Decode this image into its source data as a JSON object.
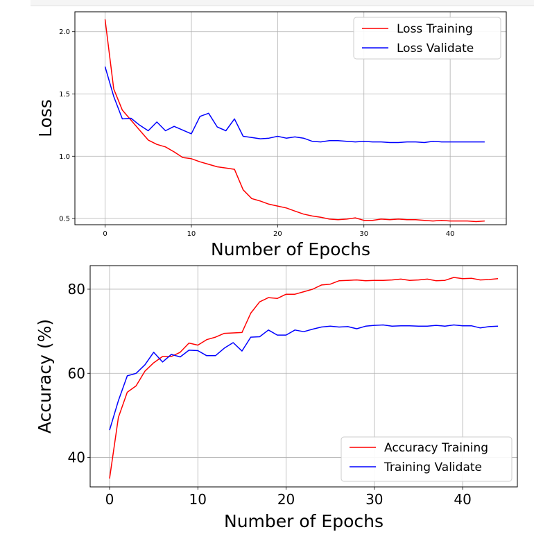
{
  "chart_data": [
    {
      "type": "line",
      "xlabel": "Number of Epochs",
      "ylabel": "Loss",
      "xlim": [
        -3.5,
        46.5
      ],
      "ylim": [
        0.45,
        2.16
      ],
      "xticks": [
        0,
        10,
        20,
        30,
        40
      ],
      "yticks": [
        0.5,
        1.0,
        1.5,
        2.0
      ],
      "ytick_labels": [
        "0.5",
        "1.0",
        "1.5",
        "2.0"
      ],
      "grid": true,
      "legend_position": "top-right",
      "series": [
        {
          "name": "Loss Training",
          "color": "#ff0000",
          "x": [
            0,
            1,
            2,
            3,
            4,
            5,
            6,
            7,
            8,
            9,
            10,
            11,
            12,
            13,
            14,
            15,
            16,
            17,
            18,
            19,
            20,
            21,
            22,
            23,
            24,
            25,
            26,
            27,
            28,
            29,
            30,
            31,
            32,
            33,
            34,
            35,
            36,
            37,
            38,
            39,
            40,
            41,
            42,
            43,
            44
          ],
          "values": [
            2.1,
            1.54,
            1.37,
            1.29,
            1.21,
            1.13,
            1.095,
            1.075,
            1.035,
            0.99,
            0.98,
            0.955,
            0.935,
            0.915,
            0.905,
            0.895,
            0.73,
            0.66,
            0.64,
            0.615,
            0.6,
            0.585,
            0.56,
            0.535,
            0.52,
            0.51,
            0.495,
            0.49,
            0.495,
            0.505,
            0.485,
            0.485,
            0.495,
            0.49,
            0.495,
            0.49,
            0.49,
            0.485,
            0.48,
            0.485,
            0.48,
            0.48,
            0.48,
            0.475,
            0.48
          ]
        },
        {
          "name": "Loss Validate",
          "color": "#0000ff",
          "x": [
            0,
            1,
            2,
            3,
            4,
            5,
            6,
            7,
            8,
            9,
            10,
            11,
            12,
            13,
            14,
            15,
            16,
            17,
            18,
            19,
            20,
            21,
            22,
            23,
            24,
            25,
            26,
            27,
            28,
            29,
            30,
            31,
            32,
            33,
            34,
            35,
            36,
            37,
            38,
            39,
            40,
            41,
            42,
            43,
            44
          ],
          "values": [
            1.72,
            1.48,
            1.3,
            1.305,
            1.25,
            1.205,
            1.275,
            1.205,
            1.24,
            1.21,
            1.18,
            1.32,
            1.345,
            1.235,
            1.205,
            1.3,
            1.16,
            1.15,
            1.14,
            1.145,
            1.16,
            1.145,
            1.155,
            1.145,
            1.12,
            1.115,
            1.125,
            1.125,
            1.12,
            1.115,
            1.12,
            1.115,
            1.115,
            1.11,
            1.11,
            1.115,
            1.115,
            1.11,
            1.12,
            1.115,
            1.115,
            1.115,
            1.115,
            1.115,
            1.115
          ]
        }
      ]
    },
    {
      "type": "line",
      "xlabel": "Number of Epochs",
      "ylabel": "Accuracy (%)",
      "xlim": [
        -2.2,
        46.2
      ],
      "ylim": [
        33.0,
        85.6
      ],
      "xticks": [
        0,
        10,
        20,
        30,
        40
      ],
      "yticks": [
        40,
        60,
        80
      ],
      "ytick_labels": [
        "40",
        "60",
        "80"
      ],
      "grid": true,
      "legend_position": "bottom-right",
      "series": [
        {
          "name": "Accuracy Training",
          "color": "#ff0000",
          "x": [
            0,
            1,
            2,
            3,
            4,
            5,
            6,
            7,
            8,
            9,
            10,
            11,
            12,
            13,
            14,
            15,
            16,
            17,
            18,
            19,
            20,
            21,
            22,
            23,
            24,
            25,
            26,
            27,
            28,
            29,
            30,
            31,
            32,
            33,
            34,
            35,
            36,
            37,
            38,
            39,
            40,
            41,
            42,
            43,
            44
          ],
          "values": [
            35.0,
            49.5,
            55.5,
            57.0,
            60.5,
            62.5,
            64.0,
            64.0,
            65.0,
            67.2,
            66.7,
            68.0,
            68.6,
            69.5,
            69.6,
            69.7,
            74.3,
            77.0,
            78.0,
            77.8,
            78.8,
            78.8,
            79.4,
            80.0,
            81.0,
            81.2,
            82.0,
            82.1,
            82.2,
            82.0,
            82.1,
            82.1,
            82.2,
            82.4,
            82.1,
            82.2,
            82.4,
            82.0,
            82.1,
            82.8,
            82.5,
            82.6,
            82.2,
            82.3,
            82.5
          ]
        },
        {
          "name": "Training Validate",
          "color": "#0000ff",
          "x": [
            0,
            1,
            2,
            3,
            4,
            5,
            6,
            7,
            8,
            9,
            10,
            11,
            12,
            13,
            14,
            15,
            16,
            17,
            18,
            19,
            20,
            21,
            22,
            23,
            24,
            25,
            26,
            27,
            28,
            29,
            30,
            31,
            32,
            33,
            34,
            35,
            36,
            37,
            38,
            39,
            40,
            41,
            42,
            43,
            44
          ],
          "values": [
            46.5,
            53.5,
            59.4,
            60.0,
            62.0,
            65.0,
            62.7,
            64.5,
            63.9,
            65.5,
            65.4,
            64.2,
            64.2,
            66.0,
            67.3,
            65.3,
            68.6,
            68.7,
            70.3,
            69.1,
            69.1,
            70.3,
            69.9,
            70.5,
            71.0,
            71.2,
            71.0,
            71.1,
            70.6,
            71.2,
            71.4,
            71.5,
            71.2,
            71.3,
            71.3,
            71.2,
            71.2,
            71.4,
            71.2,
            71.5,
            71.3,
            71.3,
            70.8,
            71.1,
            71.2
          ]
        }
      ]
    }
  ]
}
